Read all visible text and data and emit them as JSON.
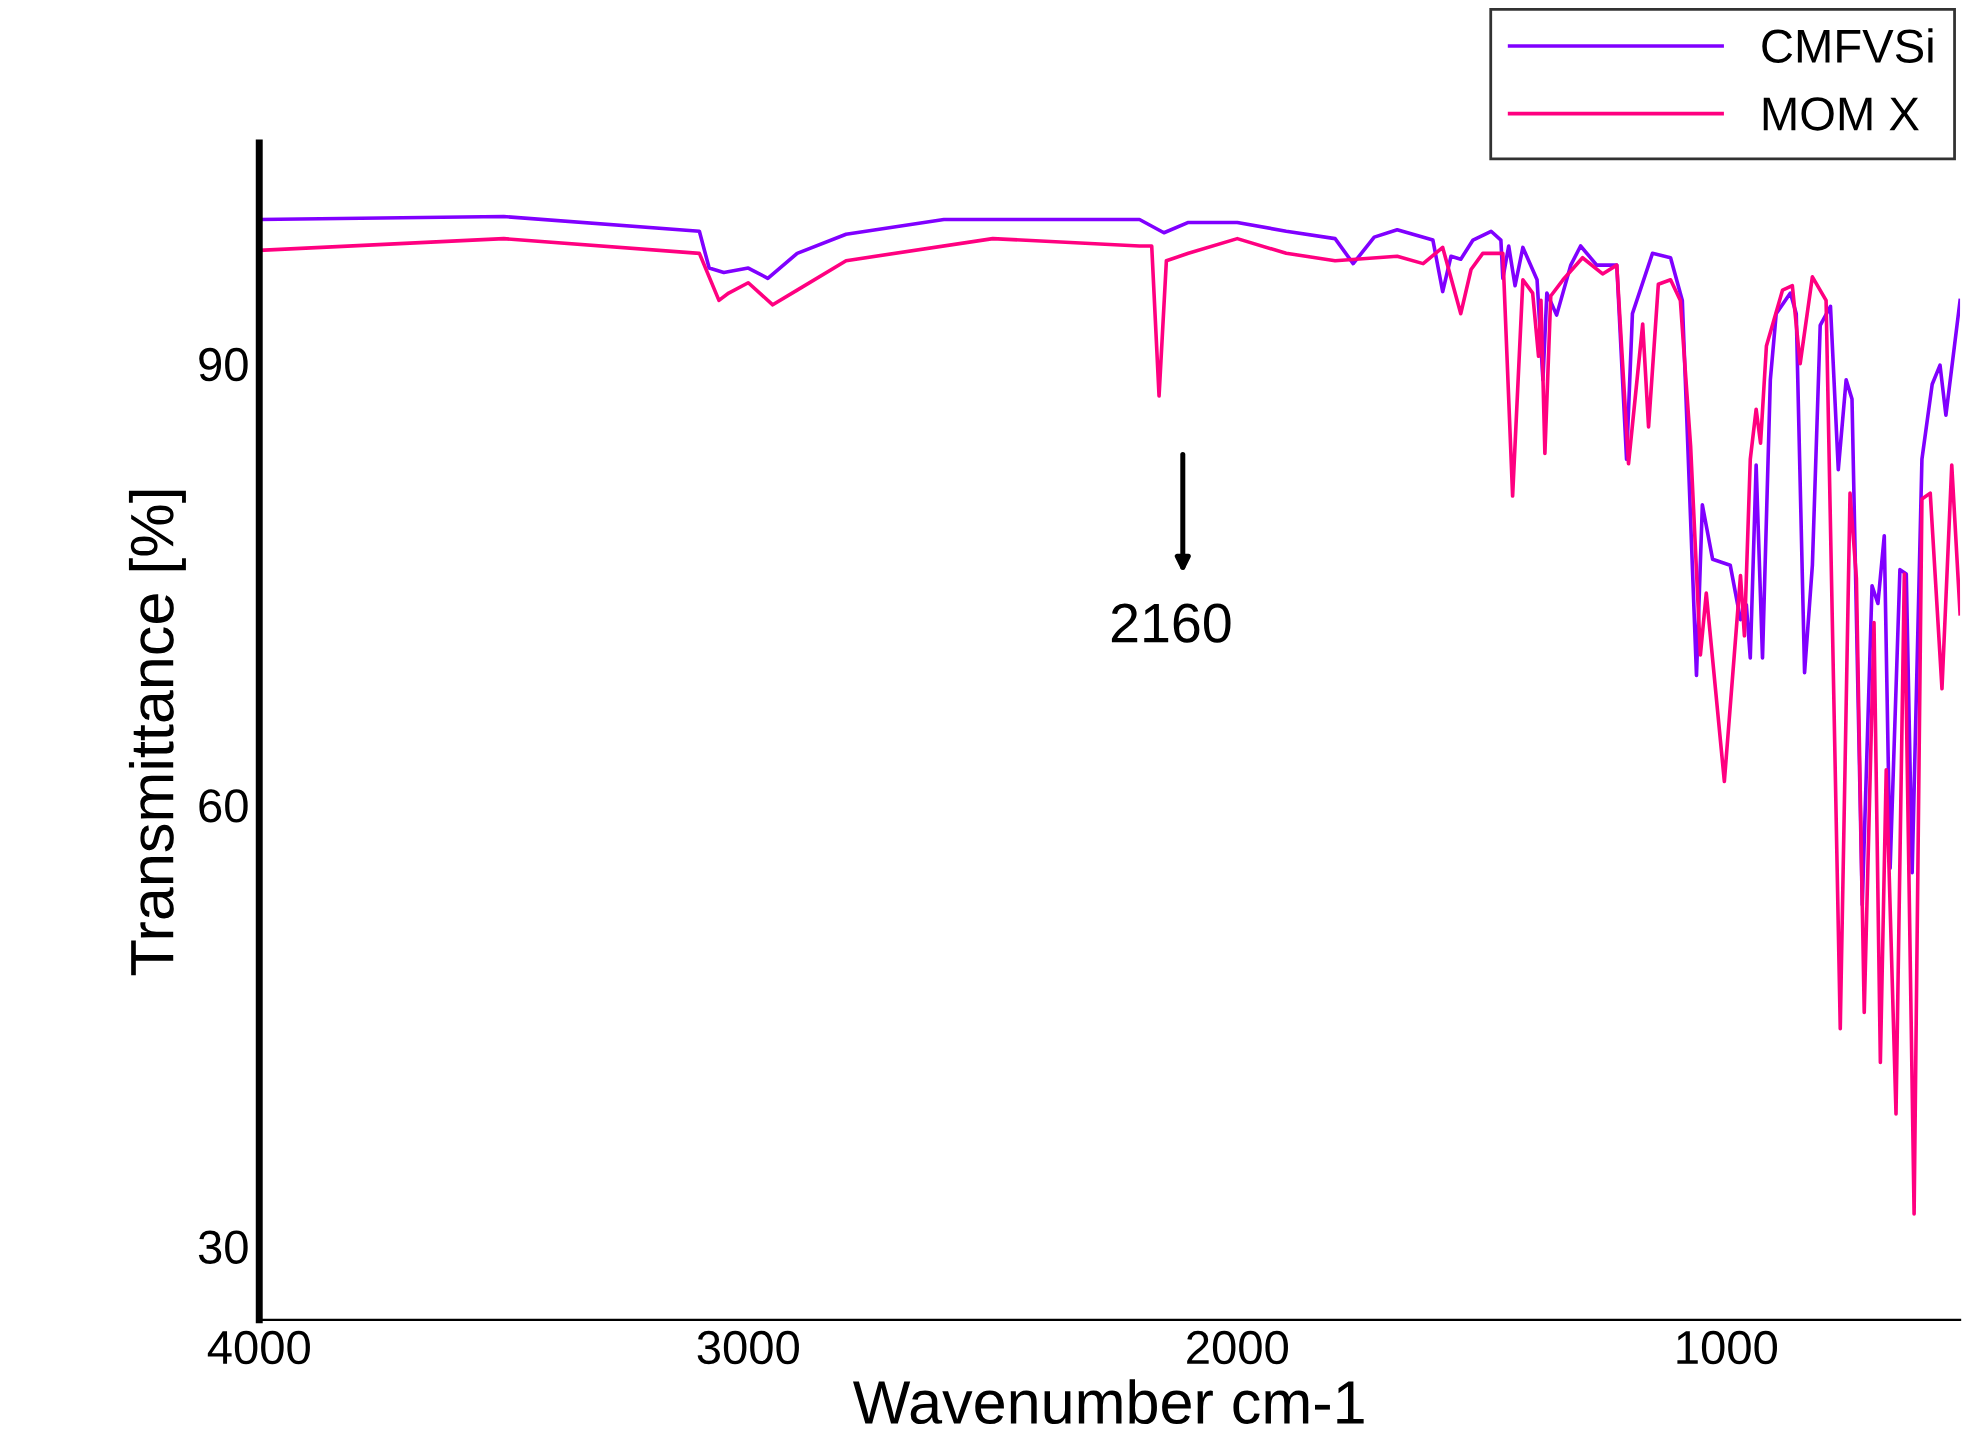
{
  "chart_data": {
    "type": "line",
    "xlabel": "Wavenumber cm-1",
    "ylabel": "Transmittance [%]",
    "xlim": [
      4000,
      522
    ],
    "ylim": [
      25,
      105
    ],
    "xticks": [
      4000,
      3000,
      2000,
      1000
    ],
    "yticks": [
      30,
      60,
      90
    ],
    "grid": false,
    "legend": "top right",
    "marker": "none",
    "line_style": "solid",
    "annotations": [
      "2160"
    ],
    "series": [
      {
        "name": "CMFVSi",
        "color": "#8000ff",
        "x": [
          4000,
          3500,
          3100,
          3080,
          3050,
          3000,
          2960,
          2900,
          2800,
          2600,
          2200,
          2150,
          2100,
          2000,
          1900,
          1800,
          1763,
          1720,
          1673,
          1600,
          1580,
          1563,
          1543,
          1518,
          1481,
          1461,
          1457,
          1445,
          1432,
          1416,
          1387,
          1375,
          1367,
          1347,
          1318,
          1298,
          1265,
          1224,
          1204,
          1192,
          1151,
          1114,
          1090,
          1061,
          1049,
          1028,
          992,
          971,
          959,
          951,
          939,
          926,
          910,
          898,
          869,
          857,
          840,
          824,
          808,
          787,
          771,
          755,
          743,
          722,
          702,
          690,
          677,
          665,
          645,
          632,
          620,
          600,
          579,
          563,
          551,
          522
        ],
        "values": [
          99.8,
          100,
          99,
          96.5,
          96.2,
          96.5,
          95.8,
          97.5,
          98.8,
          99.8,
          99.8,
          98.9,
          99.6,
          99.6,
          99,
          98.5,
          96.8,
          98.6,
          99.1,
          98.4,
          94.9,
          97.3,
          97.1,
          98.4,
          99.0,
          98.4,
          95.8,
          98.0,
          95.3,
          97.9,
          95.7,
          88.9,
          94.8,
          93.3,
          96.7,
          98.0,
          96.7,
          96.7,
          83.5,
          93.4,
          97.5,
          97.2,
          94.3,
          68.8,
          80.4,
          76.7,
          76.3,
          72.6,
          73.6,
          70.0,
          83.1,
          70.0,
          88.9,
          93.4,
          94.8,
          93.4,
          69.0,
          76.3,
          92.6,
          93.9,
          82.8,
          88.9,
          87.6,
          53.2,
          74.9,
          73.7,
          78.3,
          55.7,
          76.0,
          75.7,
          55.4,
          83.5,
          88.6,
          89.9,
          86.5,
          94.3
        ]
      },
      {
        "name": "MOM X",
        "color": "#ff0080",
        "x": [
          4000,
          3500,
          3100,
          3060,
          3040,
          3000,
          2950,
          2900,
          2800,
          2500,
          2200,
          2175,
          2160,
          2145,
          2100,
          2000,
          1900,
          1800,
          1673,
          1620,
          1580,
          1543,
          1522,
          1498,
          1457,
          1437,
          1416,
          1396,
          1384,
          1379,
          1371,
          1359,
          1334,
          1294,
          1253,
          1224,
          1200,
          1171,
          1159,
          1139,
          1114,
          1094,
          1073,
          1053,
          1041,
          1004,
          971,
          963,
          951,
          939,
          930,
          918,
          885,
          865,
          849,
          824,
          796,
          767,
          747,
          734,
          718,
          698,
          685,
          673,
          653,
          636,
          616,
          600,
          583,
          559,
          539,
          522
        ],
        "values": [
          97.7,
          98.5,
          97.5,
          94.3,
          94.8,
          95.5,
          94,
          95,
          97,
          98.5,
          98,
          98,
          87.8,
          97,
          97.5,
          98.5,
          97.5,
          97,
          97.3,
          96.8,
          97.9,
          93.4,
          96.4,
          97.5,
          97.5,
          81.0,
          95.7,
          94.8,
          90.5,
          94.3,
          83.9,
          94.6,
          95.7,
          97.2,
          96.1,
          96.7,
          83.2,
          92.7,
          85.7,
          95.4,
          95.7,
          94.3,
          84.4,
          70.2,
          74.4,
          61.6,
          75.6,
          71.5,
          83.5,
          86.9,
          84.6,
          91.2,
          95.0,
          95.3,
          90.0,
          95.9,
          94.3,
          44.8,
          81.2,
          75.4,
          45.9,
          72.4,
          42.5,
          62.4,
          39.0,
          75.7,
          32.2,
          80.8,
          81.2,
          67.9,
          83.1,
          73.0
        ]
      }
    ]
  }
}
